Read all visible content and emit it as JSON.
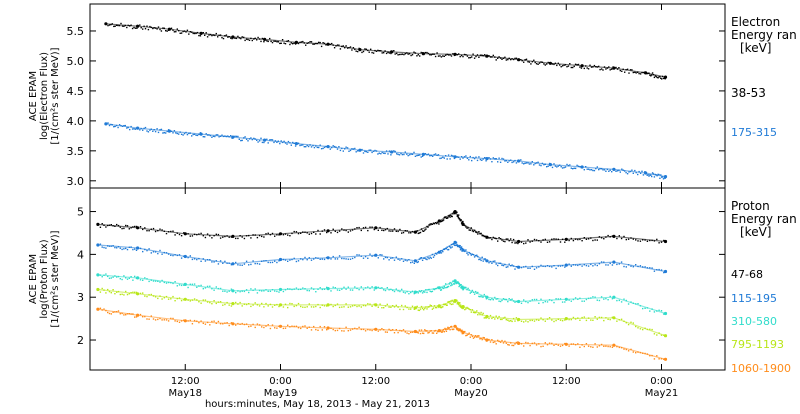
{
  "chart_data": [
    {
      "type": "scatter",
      "panel": "electron",
      "ylabel_lines": [
        "ACE EPAM",
        "log(Electron Flux)",
        "[1/(cm²s ster MeV)]"
      ],
      "ylim": [
        2.88,
        5.95
      ],
      "yticks": [
        3.0,
        3.5,
        4.0,
        4.5,
        5.0,
        5.5
      ],
      "ytick_labels": [
        "3.0",
        "3.5",
        "4.0",
        "4.5",
        "5.0",
        "5.5"
      ],
      "xlim_hours": [
        0.0,
        80.0
      ],
      "legend_title_lines": [
        "Electron",
        "Energy ran",
        "[keV]"
      ],
      "series": [
        {
          "name": "38-53",
          "color": "#000000",
          "x": [
            "May18 02:00",
            "May18 06:00",
            "May18 10:00",
            "May18 14:00",
            "May18 18:00",
            "May18 22:00",
            "May19 02:00",
            "May19 06:00",
            "May19 10:00",
            "May19 14:00",
            "May19 18:00",
            "May19 22:00",
            "May20 02:00",
            "May20 06:00",
            "May20 10:00",
            "May20 14:00",
            "May20 18:00",
            "May20 22:00",
            "May21 00:30"
          ],
          "y": [
            5.62,
            5.58,
            5.53,
            5.46,
            5.4,
            5.36,
            5.31,
            5.28,
            5.19,
            5.15,
            5.12,
            5.11,
            5.08,
            5.02,
            4.96,
            4.92,
            4.88,
            4.8,
            4.73
          ]
        },
        {
          "name": "175-315",
          "color": "#1f7ad6",
          "x": [
            "May18 02:00",
            "May18 06:00",
            "May18 10:00",
            "May18 14:00",
            "May18 18:00",
            "May18 22:00",
            "May19 02:00",
            "May19 06:00",
            "May19 10:00",
            "May19 14:00",
            "May19 18:00",
            "May19 22:00",
            "May20 02:00",
            "May20 06:00",
            "May20 10:00",
            "May20 14:00",
            "May20 18:00",
            "May20 22:00",
            "May21 00:30"
          ],
          "y": [
            3.95,
            3.88,
            3.83,
            3.78,
            3.73,
            3.68,
            3.62,
            3.57,
            3.51,
            3.48,
            3.44,
            3.4,
            3.37,
            3.33,
            3.27,
            3.23,
            3.19,
            3.13,
            3.07
          ]
        }
      ]
    },
    {
      "type": "scatter",
      "panel": "proton",
      "ylabel_lines": [
        "ACE EPAM",
        "log(Proton Flux)",
        "[1/(cm²s ster MeV)]"
      ],
      "ylim": [
        1.3,
        5.55
      ],
      "yticks": [
        2,
        3,
        4,
        5
      ],
      "ytick_labels": [
        "2",
        "3",
        "4",
        "5"
      ],
      "xlim_hours": [
        0.0,
        80.0
      ],
      "xticks_hours": [
        12,
        24,
        36,
        48,
        60,
        72
      ],
      "xtick_labels": [
        [
          "12:00",
          ""
        ],
        [
          "0:00",
          "May19"
        ],
        [
          "12:00",
          ""
        ],
        [
          "0:00",
          "May20"
        ],
        [
          "12:00",
          ""
        ],
        [
          "0:00",
          "May21"
        ]
      ],
      "x_extra_label": {
        "text": "May18",
        "hour": 12
      },
      "xlabel": "hours:minutes, May 18, 2013 - May 21, 2013",
      "legend_title_lines": [
        "Proton",
        "Energy ran",
        "[keV]"
      ],
      "series": [
        {
          "name": "47-68",
          "color": "#000000",
          "x": [
            "May18 01:00",
            "May18 06:00",
            "May18 12:00",
            "May18 18:00",
            "May19 00:00",
            "May19 06:00",
            "May19 12:00",
            "May19 17:00",
            "May19 20:00",
            "May19 22:00",
            "May19 23:00",
            "May20 02:00",
            "May20 06:00",
            "May20 12:00",
            "May20 18:00",
            "May21 00:30"
          ],
          "y": [
            4.7,
            4.62,
            4.48,
            4.42,
            4.48,
            4.55,
            4.62,
            4.52,
            4.78,
            5.0,
            4.7,
            4.4,
            4.3,
            4.35,
            4.42,
            4.3
          ]
        },
        {
          "name": "115-195",
          "color": "#1f7ad6",
          "x": [
            "May18 01:00",
            "May18 06:00",
            "May18 12:00",
            "May18 18:00",
            "May19 00:00",
            "May19 06:00",
            "May19 12:00",
            "May19 17:00",
            "May19 20:00",
            "May19 22:00",
            "May19 23:00",
            "May20 02:00",
            "May20 06:00",
            "May20 12:00",
            "May20 18:00",
            "May21 00:30"
          ],
          "y": [
            4.22,
            4.15,
            3.95,
            3.78,
            3.88,
            3.92,
            3.98,
            3.85,
            4.05,
            4.28,
            4.1,
            3.85,
            3.7,
            3.75,
            3.82,
            3.6
          ]
        },
        {
          "name": "310-580",
          "color": "#2fdccb",
          "x": [
            "May18 01:00",
            "May18 06:00",
            "May18 12:00",
            "May18 18:00",
            "May19 00:00",
            "May19 06:00",
            "May19 12:00",
            "May19 17:00",
            "May19 20:00",
            "May19 22:00",
            "May19 23:00",
            "May20 02:00",
            "May20 06:00",
            "May20 12:00",
            "May20 18:00",
            "May21 00:30"
          ],
          "y": [
            3.52,
            3.45,
            3.3,
            3.15,
            3.18,
            3.2,
            3.22,
            3.12,
            3.22,
            3.38,
            3.22,
            3.0,
            2.9,
            2.95,
            3.0,
            2.62
          ]
        },
        {
          "name": "795-1193",
          "color": "#b8e617",
          "x": [
            "May18 01:00",
            "May18 06:00",
            "May18 12:00",
            "May18 18:00",
            "May19 00:00",
            "May19 06:00",
            "May19 12:00",
            "May19 17:00",
            "May19 20:00",
            "May19 22:00",
            "May19 23:00",
            "May20 02:00",
            "May20 06:00",
            "May20 12:00",
            "May20 18:00",
            "May21 00:30"
          ],
          "y": [
            3.18,
            3.08,
            2.95,
            2.85,
            2.82,
            2.82,
            2.82,
            2.75,
            2.8,
            2.92,
            2.78,
            2.55,
            2.48,
            2.5,
            2.52,
            2.1
          ]
        },
        {
          "name": "1060-1900",
          "color": "#ff8c1a",
          "x": [
            "May18 01:00",
            "May18 06:00",
            "May18 12:00",
            "May18 18:00",
            "May19 00:00",
            "May19 06:00",
            "May19 12:00",
            "May19 17:00",
            "May19 20:00",
            "May19 22:00",
            "May19 23:00",
            "May20 02:00",
            "May20 06:00",
            "May20 12:00",
            "May20 18:00",
            "May21 00:30"
          ],
          "y": [
            2.72,
            2.58,
            2.45,
            2.38,
            2.32,
            2.28,
            2.25,
            2.2,
            2.22,
            2.32,
            2.18,
            2.0,
            1.92,
            1.9,
            1.88,
            1.55
          ]
        }
      ]
    }
  ]
}
